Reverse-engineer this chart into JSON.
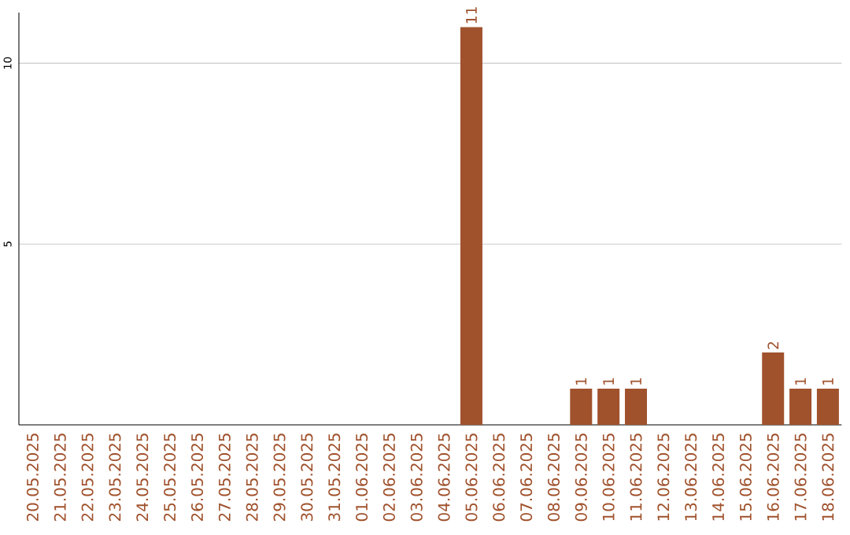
{
  "chart_data": {
    "type": "bar",
    "categories": [
      "20.05.2025",
      "21.05.2025",
      "22.05.2025",
      "23.05.2025",
      "24.05.2025",
      "25.05.2025",
      "26.05.2025",
      "27.05.2025",
      "28.05.2025",
      "29.05.2025",
      "30.05.2025",
      "31.05.2025",
      "01.06.2025",
      "02.06.2025",
      "03.06.2025",
      "04.06.2025",
      "05.06.2025",
      "06.06.2025",
      "07.06.2025",
      "08.06.2025",
      "09.06.2025",
      "10.06.2025",
      "11.06.2025",
      "12.06.2025",
      "13.06.2025",
      "14.06.2025",
      "15.06.2025",
      "16.06.2025",
      "17.06.2025",
      "18.06.2025"
    ],
    "values": [
      0,
      0,
      0,
      0,
      0,
      0,
      0,
      0,
      0,
      0,
      0,
      0,
      0,
      0,
      0,
      0,
      11,
      0,
      0,
      0,
      1,
      1,
      1,
      0,
      0,
      0,
      0,
      2,
      1,
      1
    ],
    "value_labels": [
      null,
      null,
      null,
      null,
      null,
      null,
      null,
      null,
      null,
      null,
      null,
      null,
      null,
      null,
      null,
      null,
      "11",
      null,
      null,
      null,
      "1",
      "1",
      "1",
      null,
      null,
      null,
      null,
      "2",
      "1",
      "1"
    ],
    "color": "#a0522d",
    "ylim": [
      0,
      11.4
    ],
    "yticks": [
      5,
      10
    ],
    "grid": "y"
  }
}
